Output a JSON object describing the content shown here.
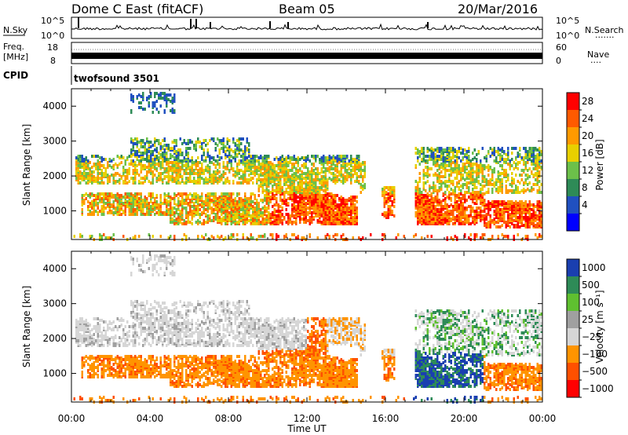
{
  "header": {
    "title": "Dome C East (fitACF)",
    "beam": "Beam 05",
    "date": "20/Mar/2016"
  },
  "panels": {
    "nsky_label": "N.Sky",
    "nsearch_label": "N.Search",
    "nsky_ticks": [
      "10^5",
      "10^0"
    ],
    "nsearch_ticks": [
      "10^5",
      "10^0"
    ],
    "freq_label_1": "Freq.",
    "freq_label_2": "[MHz]",
    "freq_ticks": [
      "18",
      "8"
    ],
    "nave_label": "Nave",
    "nave_ticks": [
      "60",
      "0"
    ],
    "cpid_label": "CPID",
    "cpid_name": "twofsound 3501"
  },
  "colors": {
    "power": [
      "#0000ff",
      "#2050c0",
      "#2e8b57",
      "#6cc04a",
      "#e8d000",
      "#ff9a00",
      "#ff5a00",
      "#ff0000"
    ],
    "velocity": [
      "#ff0000",
      "#ff5000",
      "#ff9400",
      "#d6d6d6",
      "#a0a0a0",
      "#5fc030",
      "#2e8b57",
      "#1a3fb0"
    ]
  },
  "chart_data": [
    {
      "type": "heatmap",
      "title": "Power",
      "xlabel": "Time UT",
      "ylabel": "Slant Range [km]",
      "xlim": [
        "00:00",
        "24:00"
      ],
      "ylim": [
        180,
        4500
      ],
      "x_ticks": [
        "00:00",
        "04:00",
        "08:00",
        "12:00",
        "16:00",
        "20:00",
        "00:00"
      ],
      "y_ticks": [
        "1000",
        "2000",
        "3000",
        "4000"
      ],
      "colorbar_label": "Power [dB]",
      "colorbar_ticks": [
        "4",
        "8",
        "12",
        "16",
        "20",
        "24",
        "28"
      ],
      "colorbar_range": [
        0,
        32
      ]
    },
    {
      "type": "heatmap",
      "title": "Velocity",
      "xlabel": "Time UT",
      "ylabel": "Slant Range [km]",
      "xlim": [
        "00:00",
        "24:00"
      ],
      "ylim": [
        180,
        4500
      ],
      "x_ticks": [
        "00:00",
        "04:00",
        "08:00",
        "12:00",
        "16:00",
        "20:00",
        "00:00"
      ],
      "y_ticks": [
        "1000",
        "2000",
        "3000",
        "4000"
      ],
      "colorbar_label": "Velocity [m s⁻¹]",
      "colorbar_ticks": [
        "1000",
        "500",
        "100",
        "25",
        "−25",
        "−100",
        "−500",
        "−1000"
      ]
    }
  ]
}
